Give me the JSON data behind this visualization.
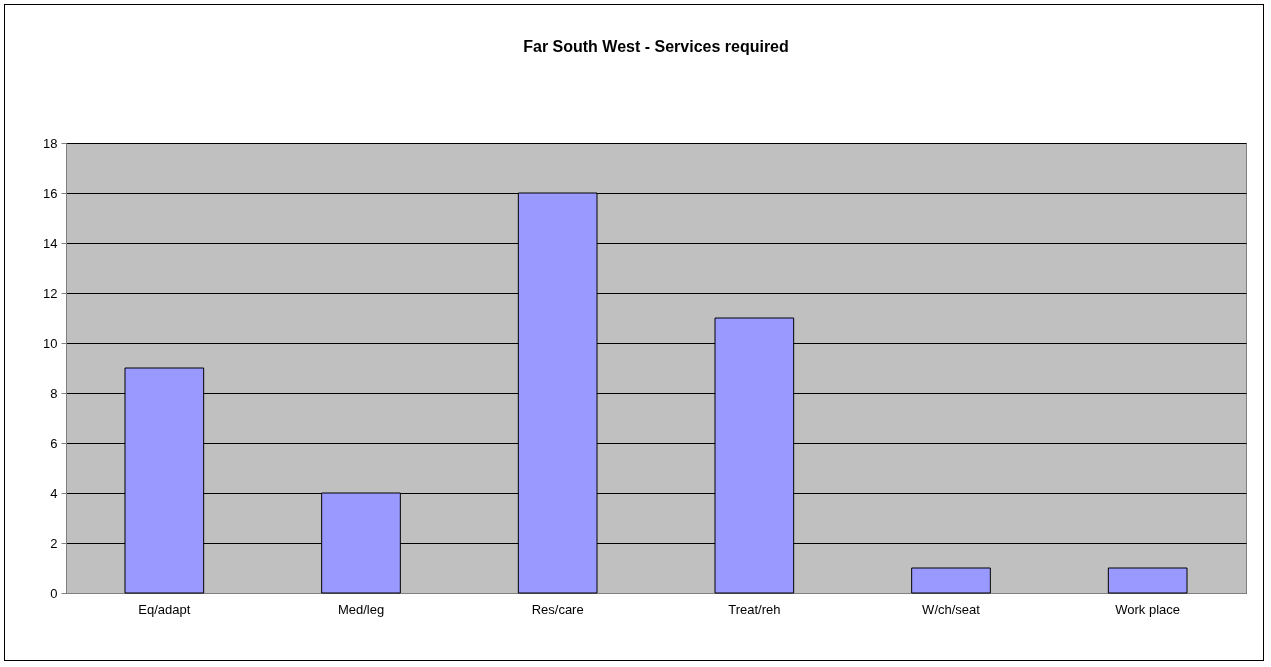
{
  "chart_data": {
    "type": "bar",
    "title": "Far South West - Services required",
    "categories": [
      "Eq/adapt",
      "Med/leg",
      "Res/care",
      "Treat/reh",
      "W/ch/seat",
      "Work place"
    ],
    "values": [
      9,
      4,
      16,
      11,
      1,
      1
    ],
    "color": "#9999ff",
    "ylim": [
      0,
      18
    ],
    "yticks": [
      0,
      2,
      4,
      6,
      8,
      10,
      12,
      14,
      16,
      18
    ],
    "grid": "y"
  }
}
